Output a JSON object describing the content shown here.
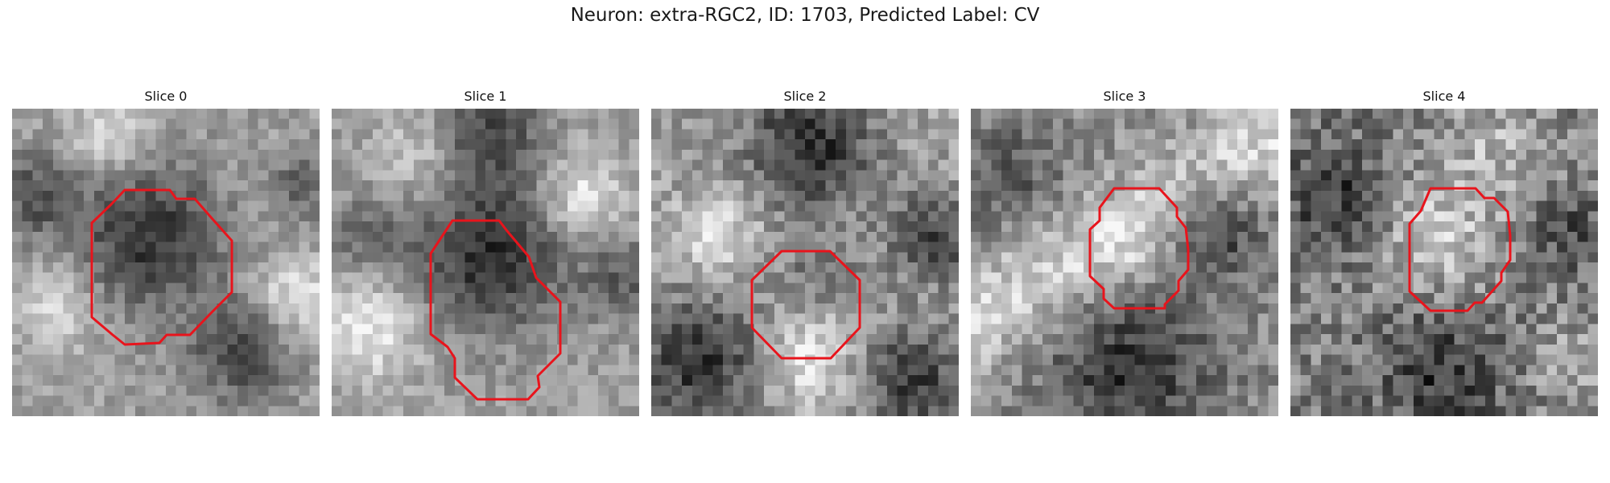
{
  "figure": {
    "title": "Neuron: extra-RGC2, ID: 1703, Predicted Label: CV"
  },
  "panels": [
    {
      "title": "Slice 0",
      "pattern": "dark-center-bright-corners",
      "seed": 11
    },
    {
      "title": "Slice 1",
      "pattern": "dark-center-vertical",
      "seed": 23
    },
    {
      "title": "Slice 2",
      "pattern": "bright-x-dark-lobes",
      "seed": 37
    },
    {
      "title": "Slice 3",
      "pattern": "bright-diagonal-band",
      "seed": 51
    },
    {
      "title": "Slice 4",
      "pattern": "bright-center-noisy",
      "seed": 67
    }
  ],
  "outline_color": "#e8141c"
}
